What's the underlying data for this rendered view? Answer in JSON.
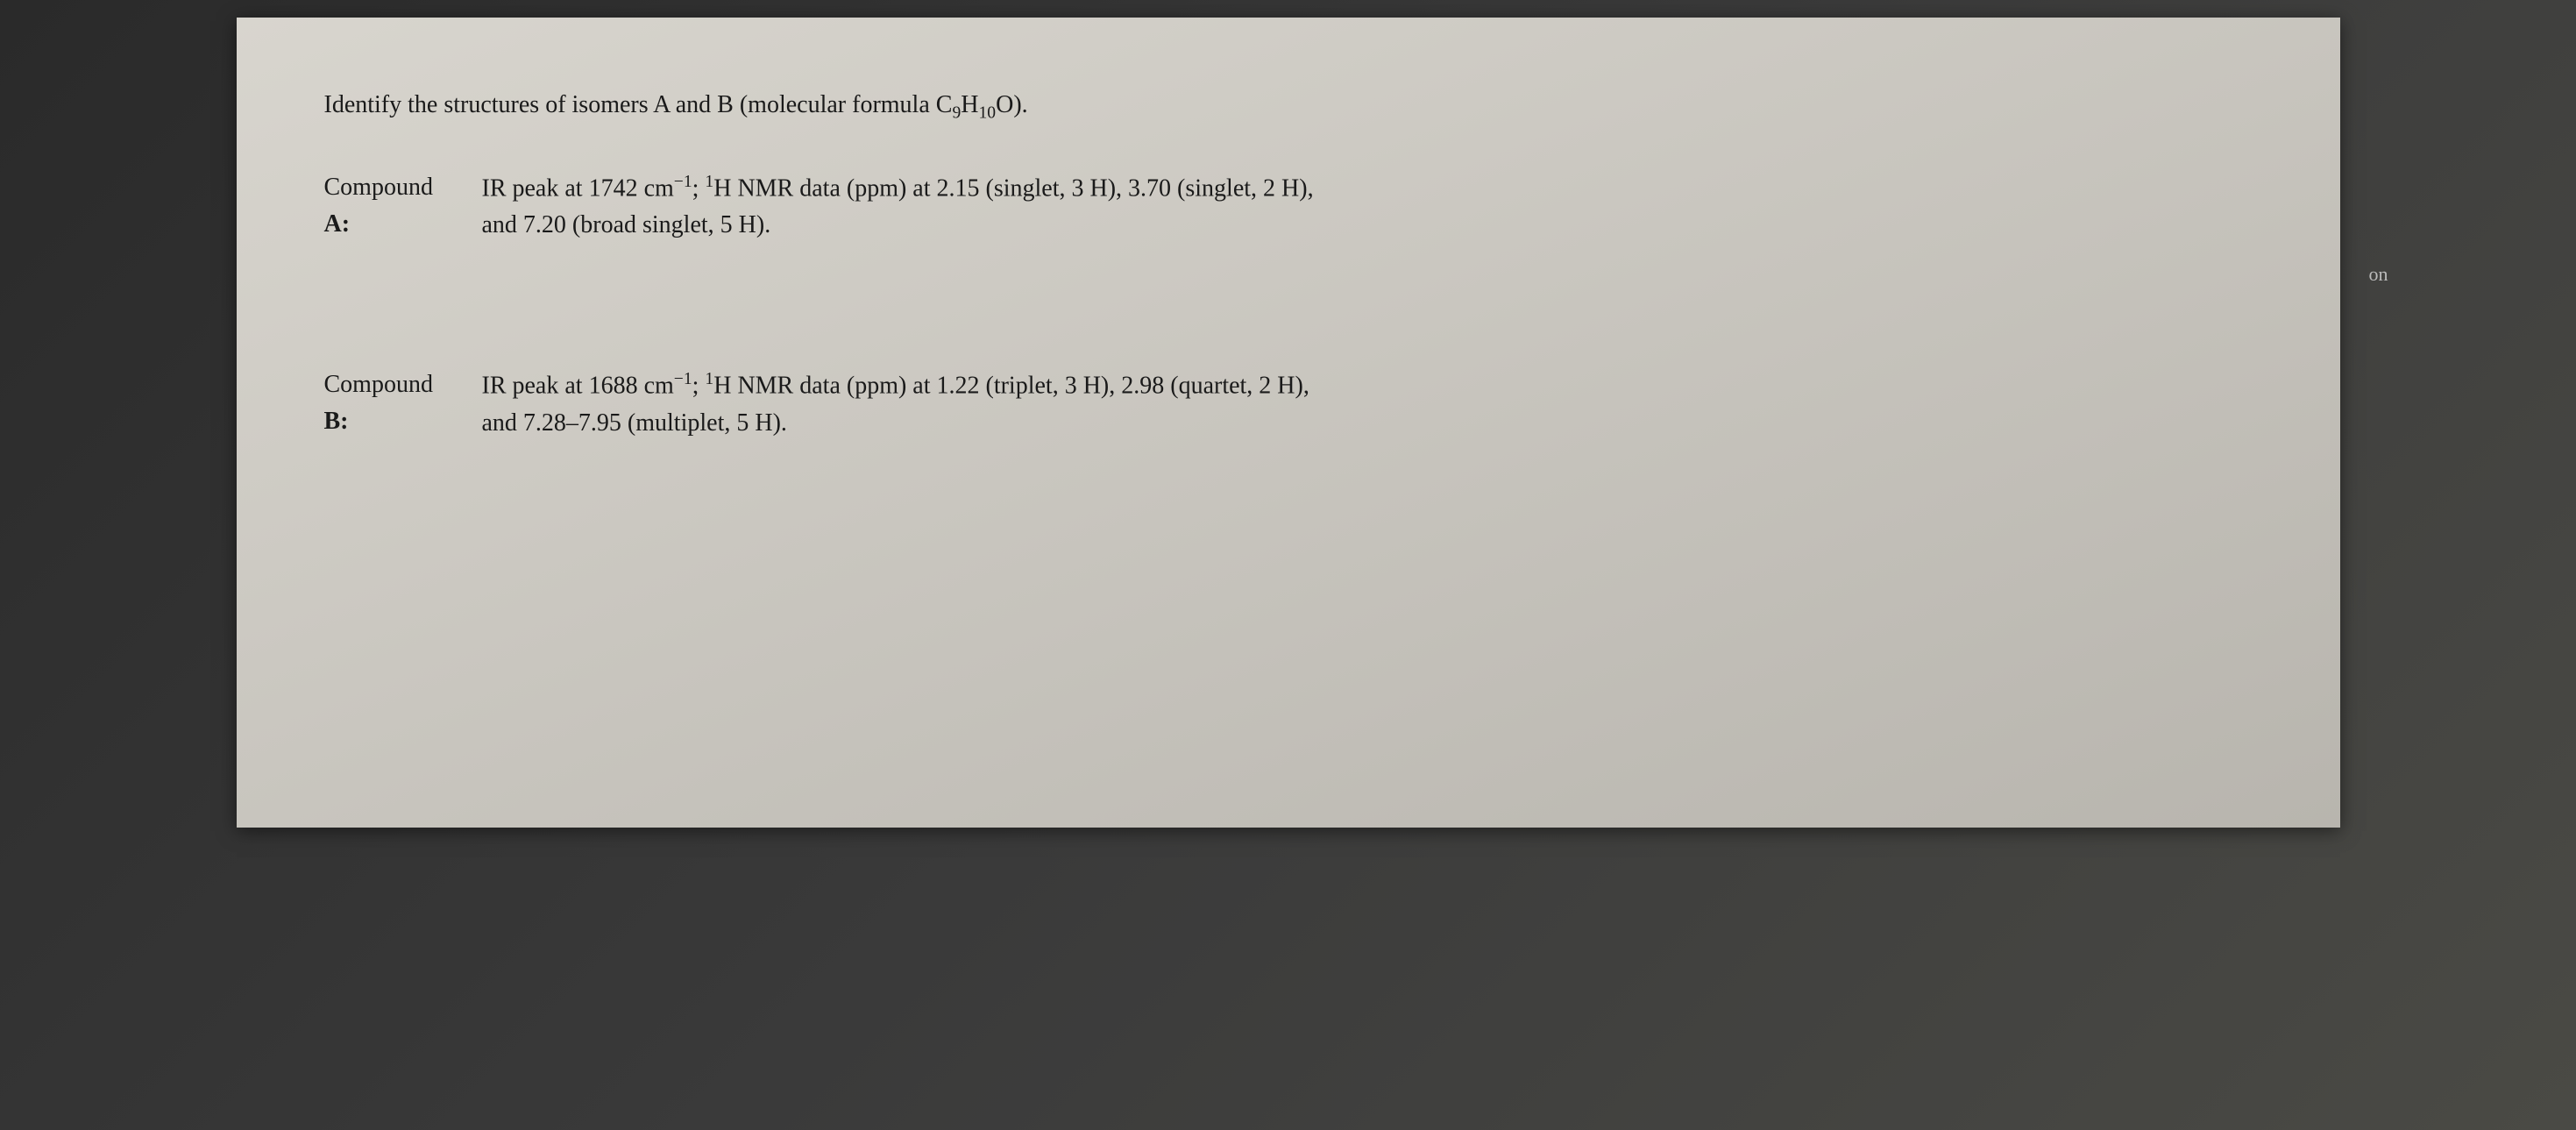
{
  "question": {
    "prefix": "Identify the structures of isomers A and B (molecular formula ",
    "formula": "C₉H₁₀O",
    "suffix": ")."
  },
  "compoundA": {
    "label1": "Compound",
    "label2": "A:",
    "data_line1": "IR peak at 1742 cm⁻¹; ¹H NMR data (ppm) at 2.15 (singlet, 3 H), 3.70 (singlet, 2 H),",
    "data_line2": "and 7.20 (broad singlet, 5 H)."
  },
  "compoundB": {
    "label1": "Compound",
    "label2": "B:",
    "data_line1": "IR peak at 1688 cm⁻¹; ¹H NMR data (ppm) at 1.22 (triplet, 3 H), 2.98 (quartet, 2 H),",
    "data_line2": "and 7.28–7.95 (multiplet, 5 H)."
  },
  "side": {
    "on_label": "on"
  },
  "styling": {
    "paper_bg_start": "#d8d5ce",
    "paper_bg_end": "#b8b5ae",
    "text_color": "#1a1a1a",
    "body_bg": "#3a3a3a",
    "font_size": 28,
    "font_family": "Georgia, Times New Roman, serif"
  }
}
